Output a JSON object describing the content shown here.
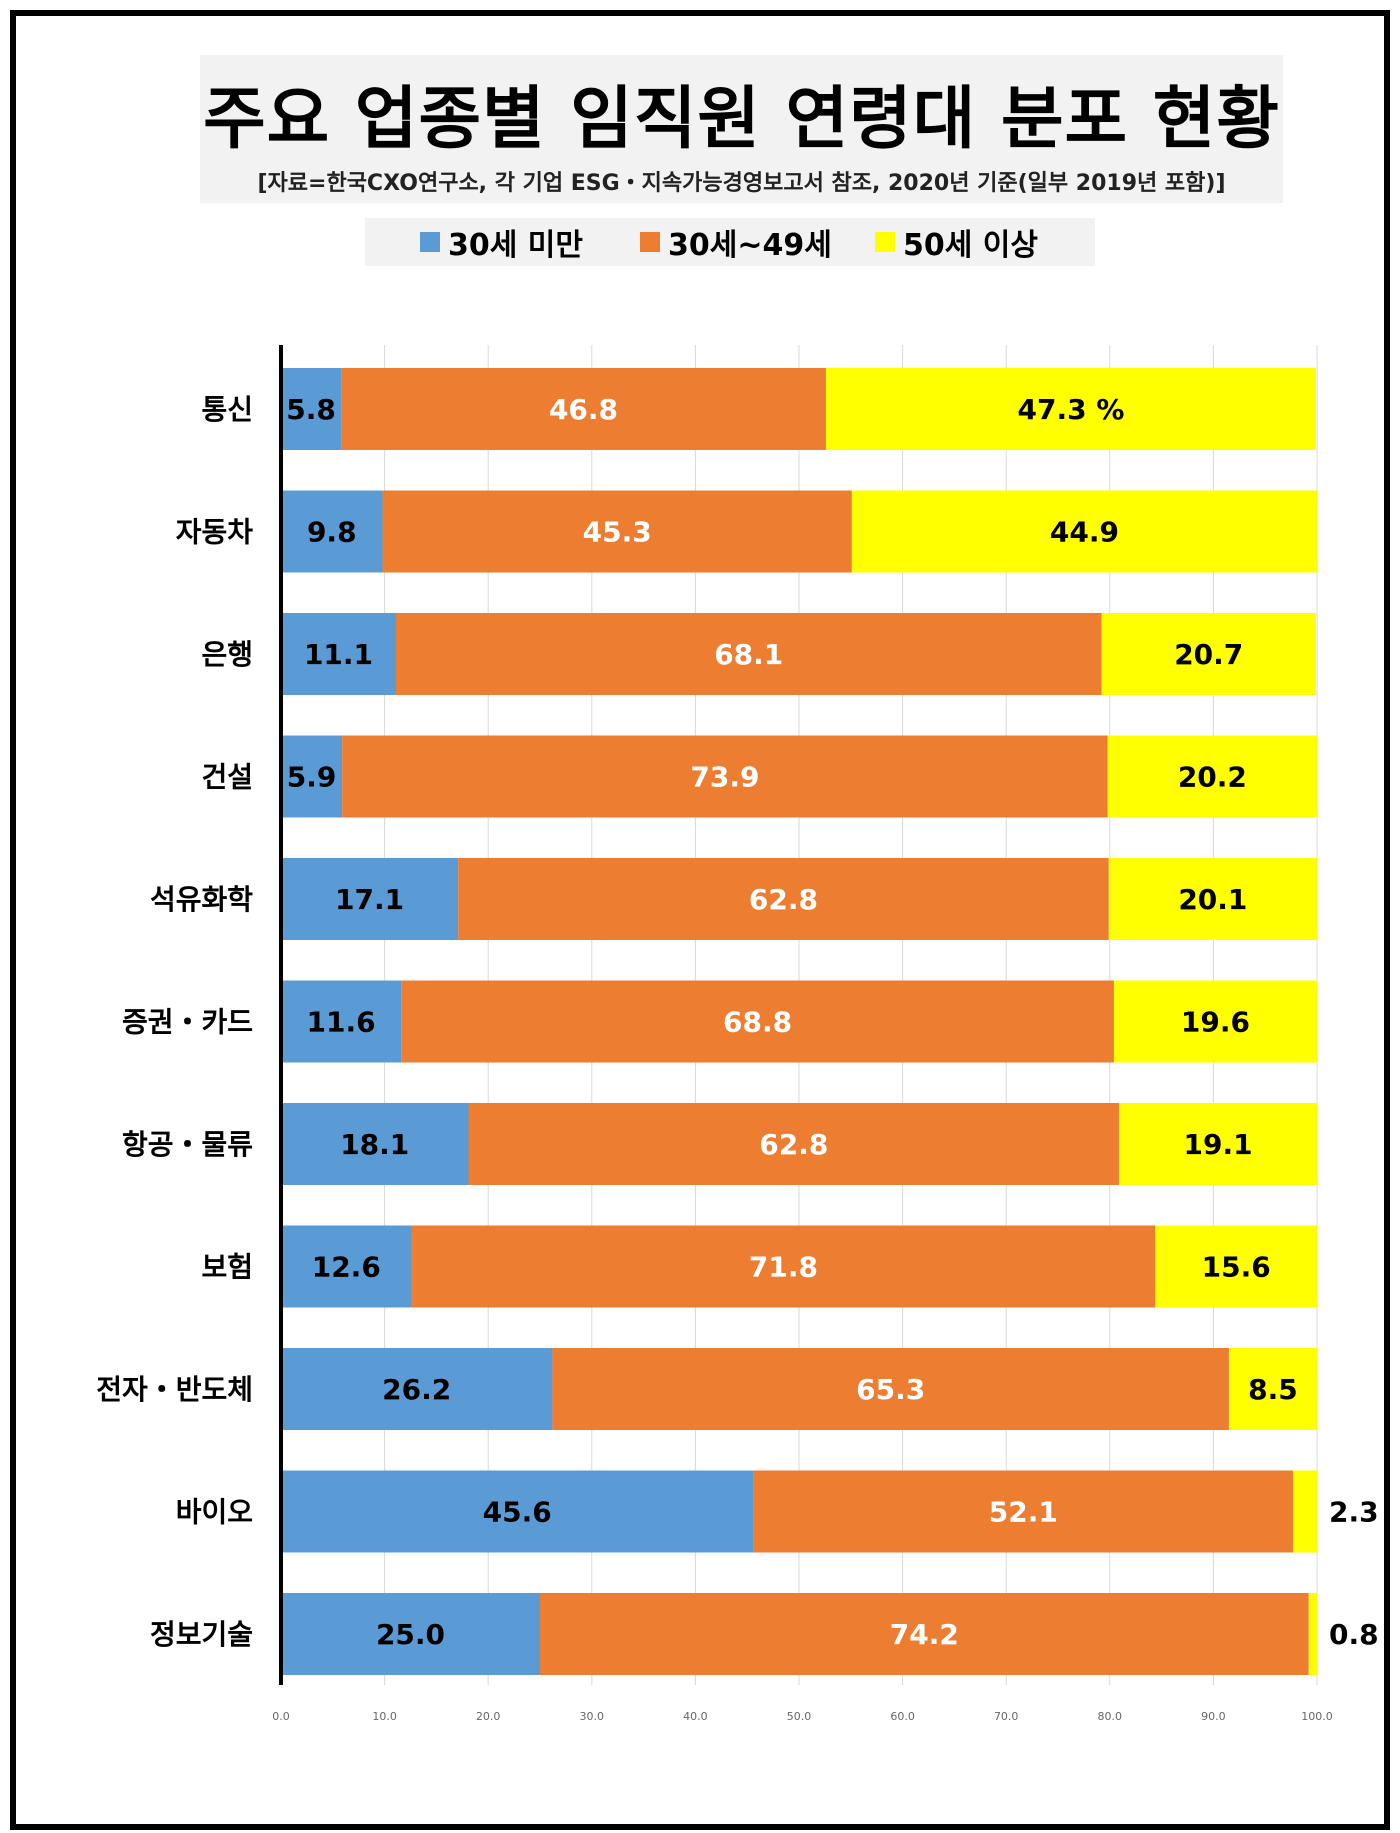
{
  "title": "주요 업종별 임직원 연령대 분포 현황",
  "subtitle": "[자료=한국CXO연구소, 각 기업 ESG・지속가능경영보고서 참조, 2020년 기준(일부 2019년 포함)]",
  "colors": {
    "under30": "#5b9bd5",
    "mid": "#ed7d31",
    "over50": "#ffff00"
  },
  "chart_data": {
    "type": "bar",
    "orientation": "horizontal",
    "stacked": true,
    "categories": [
      "통신",
      "자동차",
      "은행",
      "건설",
      "석유화학",
      "증권・카드",
      "항공・물류",
      "보험",
      "전자・반도체",
      "바이오",
      "정보기술"
    ],
    "series": [
      {
        "name": "30세 미만",
        "values": [
          5.8,
          9.8,
          11.1,
          5.9,
          17.1,
          11.6,
          18.1,
          12.6,
          26.2,
          45.6,
          25.0
        ]
      },
      {
        "name": "30세~49세",
        "values": [
          46.8,
          45.3,
          68.1,
          73.9,
          62.8,
          68.8,
          62.8,
          71.8,
          65.3,
          52.1,
          74.2
        ]
      },
      {
        "name": "50세 이상",
        "values": [
          47.3,
          44.9,
          20.7,
          20.2,
          20.1,
          19.6,
          19.1,
          15.6,
          8.5,
          2.3,
          0.8
        ]
      }
    ],
    "first_value_suffix": " %",
    "xlim": [
      0,
      100
    ],
    "xticks": [
      "0.0",
      "10.0",
      "20.0",
      "30.0",
      "40.0",
      "50.0",
      "60.0",
      "70.0",
      "80.0",
      "90.0",
      "100.0"
    ],
    "grid": true,
    "legend": "top"
  }
}
